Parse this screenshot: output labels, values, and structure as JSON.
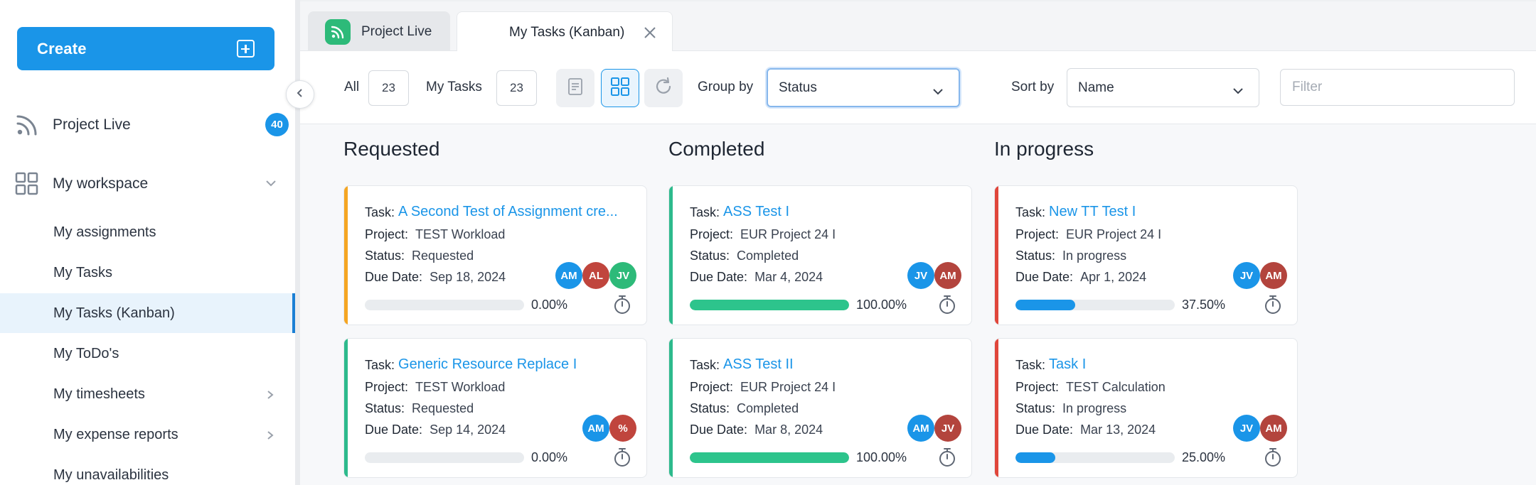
{
  "sidebar": {
    "create_label": "Create",
    "project_live": {
      "label": "Project Live",
      "badge": "40"
    },
    "workspace": {
      "label": "My workspace"
    },
    "items": [
      {
        "label": "My assignments"
      },
      {
        "label": "My Tasks"
      },
      {
        "label": "My Tasks (Kanban)",
        "active": true
      },
      {
        "label": "My ToDo's"
      },
      {
        "label": "My timesheets"
      },
      {
        "label": "My expense reports"
      },
      {
        "label": "My unavailabilities"
      }
    ]
  },
  "tabs": [
    {
      "label": "Project Live"
    },
    {
      "label": "My Tasks (Kanban)",
      "active": true
    }
  ],
  "toolbar": {
    "all_label": "All",
    "all_count": "23",
    "mytasks_label": "My Tasks",
    "mytasks_count": "23",
    "group_by_label": "Group by",
    "group_by_value": "Status",
    "sort_by_label": "Sort by",
    "sort_by_value": "Name",
    "filter_placeholder": "Filter"
  },
  "colors": {
    "accent": "#1a95e8",
    "requested_stripe": "#f5a623",
    "completed": "#2dc48c",
    "in_progress_stripe": "#e0463b",
    "avatar_am": "#1a95e8",
    "avatar_al": "#c0453d",
    "avatar_jv_green": "#2dba79",
    "avatar_jv_blue": "#1a95e8",
    "avatar_am_red": "#b3443d"
  },
  "labels": {
    "task": "Task:",
    "project": "Project:",
    "status": "Status:",
    "due_date": "Due Date:"
  },
  "columns": [
    {
      "title": "Requested",
      "cards": [
        {
          "task": "A Second Test of Assignment cre...",
          "project": "TEST Workload",
          "status": "Requested",
          "due": "Sep 18, 2024",
          "progress": 0,
          "progress_label": "0.00%",
          "stripe": "#f5a623",
          "avatars": [
            {
              "initials": "AM",
              "color": "#1a95e8"
            },
            {
              "initials": "AL",
              "color": "#c0453d"
            },
            {
              "initials": "JV",
              "color": "#2dba79"
            }
          ]
        },
        {
          "task": "Generic Resource Replace I",
          "project": "TEST Workload",
          "status": "Requested",
          "due": "Sep 14, 2024",
          "progress": 0,
          "progress_label": "0.00%",
          "stripe": "#2dba8c",
          "avatars": [
            {
              "initials": "AM",
              "color": "#1a95e8"
            },
            {
              "initials": "%",
              "color": "#c0453d"
            }
          ]
        }
      ]
    },
    {
      "title": "Completed",
      "cards": [
        {
          "task": "ASS Test I",
          "project": "EUR Project 24 I",
          "status": "Completed",
          "due": "Mar 4, 2024",
          "progress": 100,
          "progress_label": "100.00%",
          "stripe": "#2dba8c",
          "avatars": [
            {
              "initials": "JV",
              "color": "#1a95e8"
            },
            {
              "initials": "AM",
              "color": "#b3443d"
            }
          ]
        },
        {
          "task": "ASS Test II",
          "project": "EUR Project 24 I",
          "status": "Completed",
          "due": "Mar 8, 2024",
          "progress": 100,
          "progress_label": "100.00%",
          "stripe": "#2dba8c",
          "avatars": [
            {
              "initials": "AM",
              "color": "#1a95e8"
            },
            {
              "initials": "JV",
              "color": "#b3443d"
            }
          ]
        }
      ]
    },
    {
      "title": "In progress",
      "cards": [
        {
          "task": "New TT Test I",
          "project": "EUR Project 24 I",
          "status": "In progress",
          "due": "Apr 1, 2024",
          "progress": 37.5,
          "progress_label": "37.50%",
          "stripe": "#e0463b",
          "avatars": [
            {
              "initials": "JV",
              "color": "#1a95e8"
            },
            {
              "initials": "AM",
              "color": "#b3443d"
            }
          ]
        },
        {
          "task": "Task I",
          "project": "TEST Calculation",
          "status": "In progress",
          "due": "Mar 13, 2024",
          "progress": 25,
          "progress_label": "25.00%",
          "stripe": "#e0463b",
          "avatars": [
            {
              "initials": "JV",
              "color": "#1a95e8"
            },
            {
              "initials": "AM",
              "color": "#b3443d"
            }
          ]
        }
      ]
    }
  ]
}
